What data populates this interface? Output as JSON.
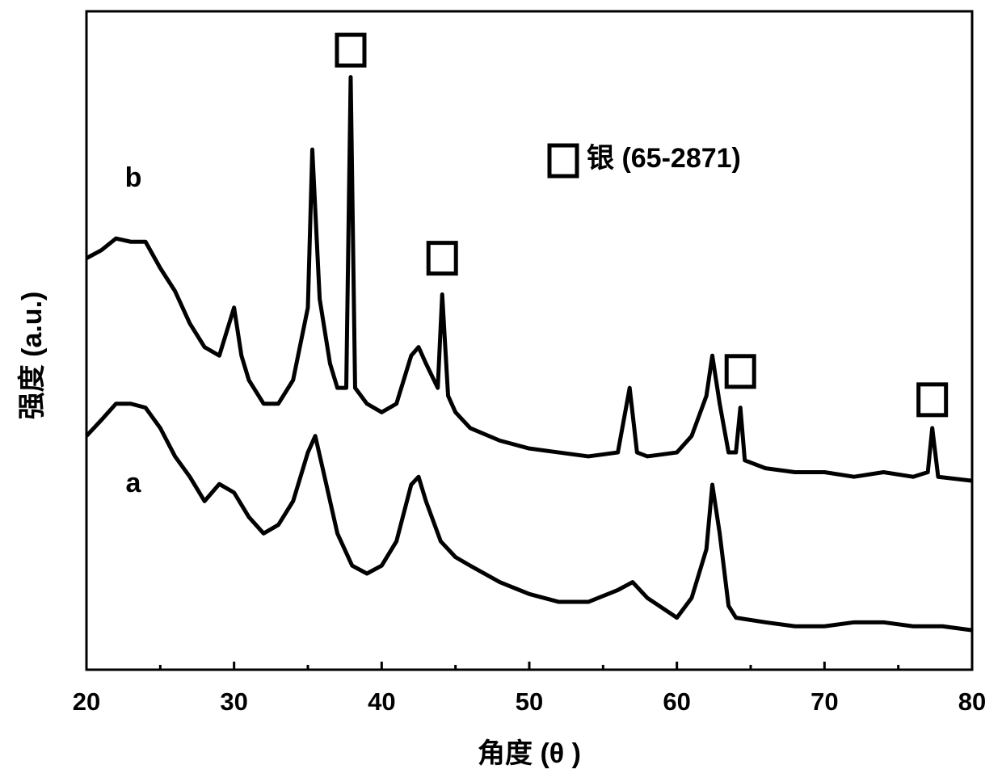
{
  "chart_data": {
    "type": "line",
    "xlabel": "角度 (θ )",
    "ylabel": "强度 (a.u.)",
    "xlim": [
      20,
      80
    ],
    "xticks": [
      20,
      30,
      40,
      50,
      60,
      70,
      80
    ],
    "xminorticks": [
      25,
      35,
      45,
      55,
      65,
      75
    ],
    "ylim": [
      0,
      100
    ],
    "legend_text": "银 (65-2871)",
    "markers": [
      {
        "x": 37.9,
        "y": 94.1
      },
      {
        "x": 44.1,
        "y": 62.5
      },
      {
        "x": 64.3,
        "y": 45.3
      },
      {
        "x": 77.3,
        "y": 41
      }
    ],
    "series": [
      {
        "name": "a",
        "color": "#000000",
        "x": [
          20,
          21,
          22,
          23,
          24,
          25,
          26,
          27,
          28,
          29,
          30,
          31,
          32,
          33,
          34,
          35,
          35.5,
          36,
          37,
          38,
          39,
          40,
          41,
          42,
          42.5,
          43,
          44,
          45,
          46,
          48,
          50,
          52,
          54,
          56,
          57,
          58,
          60,
          61,
          62,
          62.4,
          62.9,
          63.5,
          64,
          66,
          68,
          70,
          72,
          74,
          76,
          78,
          80
        ],
        "values": [
          35.5,
          37.9,
          40.4,
          40.4,
          39.8,
          36.7,
          32.4,
          29.3,
          25.6,
          28.2,
          26.9,
          23.2,
          20.7,
          22,
          25.6,
          33,
          35.5,
          30.6,
          20.7,
          15.8,
          14.6,
          15.8,
          19.5,
          28.1,
          29.3,
          25.6,
          19.5,
          17.1,
          15.8,
          13.3,
          11.5,
          10.3,
          10.3,
          12.1,
          13.3,
          10.9,
          7.9,
          10.9,
          18.3,
          28.1,
          20.7,
          9.7,
          7.9,
          7.2,
          6.6,
          6.6,
          7.2,
          7.2,
          6.6,
          6.6,
          6
        ]
      },
      {
        "name": "b",
        "color": "#000000",
        "x": [
          20,
          21,
          22,
          23,
          24,
          25,
          26,
          27,
          28,
          29,
          30,
          30.5,
          31,
          32,
          33,
          34,
          35,
          35.3,
          35.8,
          36.5,
          37,
          37.6,
          37.9,
          38.2,
          39,
          40,
          41,
          42,
          42.5,
          43,
          43.8,
          44.1,
          44.5,
          45,
          46,
          48,
          50,
          52,
          54,
          56,
          56.8,
          57.3,
          58,
          60,
          61,
          62,
          62.4,
          62.9,
          63.5,
          64,
          64.3,
          64.6,
          66,
          68,
          70,
          72,
          74,
          76,
          77,
          77.3,
          77.7,
          80
        ],
        "values": [
          62.5,
          63.7,
          65.5,
          65,
          65,
          61,
          57.5,
          52.6,
          49,
          47.7,
          55,
          47.7,
          44,
          40.4,
          40.4,
          44,
          55,
          79,
          56.3,
          46.5,
          42.8,
          42.8,
          90,
          42.8,
          40.4,
          39.1,
          40.4,
          47.7,
          49,
          46.5,
          42.8,
          57,
          41.6,
          39.1,
          36.7,
          34.8,
          33.6,
          33,
          32.4,
          33,
          42.8,
          33,
          32.4,
          33,
          35.5,
          41.6,
          47.7,
          40.4,
          33,
          33,
          39.8,
          31.8,
          30.6,
          30,
          30,
          29.3,
          30,
          29.3,
          30,
          36.7,
          29.3,
          28.7
        ]
      }
    ]
  }
}
